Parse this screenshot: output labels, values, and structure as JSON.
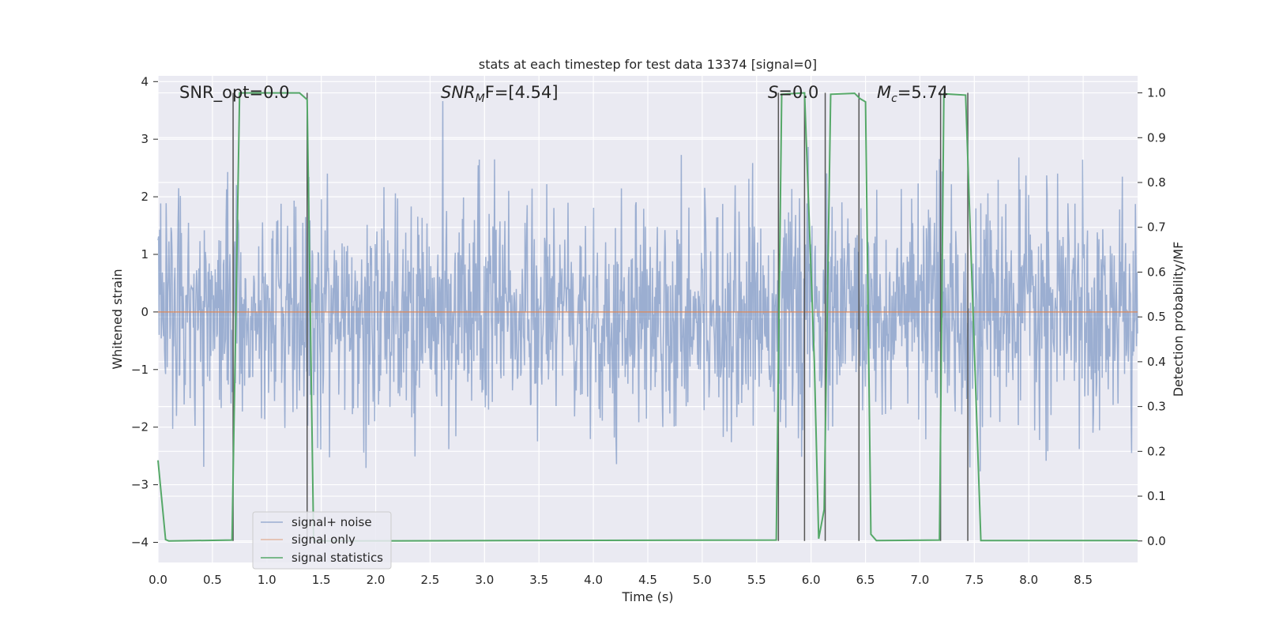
{
  "chart_data": {
    "type": "line",
    "title": "stats at each timestep for test data 13374 [signal=0]",
    "xlabel": "Time (s)",
    "ylabel": "Whitened strain",
    "y2label": "Detection probability/MF",
    "xlim": [
      0,
      9
    ],
    "ylim": [
      -4.35,
      4.1
    ],
    "y2lim": [
      -0.048,
      1.038
    ],
    "x_ticks": [
      0.0,
      0.5,
      1.0,
      1.5,
      2.0,
      2.5,
      3.0,
      3.5,
      4.0,
      4.5,
      5.0,
      5.5,
      6.0,
      6.5,
      7.0,
      7.5,
      8.0,
      8.5
    ],
    "x_tick_labels": [
      "0.0",
      "0.5",
      "1.0",
      "1.5",
      "2.0",
      "2.5",
      "3.0",
      "3.5",
      "4.0",
      "4.5",
      "5.0",
      "5.5",
      "6.0",
      "6.5",
      "7.0",
      "7.5",
      "8.0",
      "8.5"
    ],
    "y_ticks": [
      4,
      3,
      2,
      1,
      0,
      -1,
      -2,
      -3,
      -4
    ],
    "y_tick_labels": [
      "4",
      "3",
      "2",
      "1",
      "0",
      "−1",
      "−2",
      "−3",
      "−4"
    ],
    "y2_ticks": [
      1.0,
      0.9,
      0.8,
      0.7,
      0.6,
      0.5,
      0.4,
      0.3,
      0.2,
      0.1,
      0.0
    ],
    "y2_tick_labels": [
      "1.0",
      "0.9",
      "0.8",
      "0.7",
      "0.6",
      "0.5",
      "0.4",
      "0.3",
      "0.2",
      "0.1",
      "0.0"
    ],
    "grid": true,
    "annotations": {
      "snr_opt": "SNR_opt=0.0",
      "snr_mf_main": "SNR",
      "snr_mf_sub": "M",
      "snr_mf_rest": "F=[4.54]",
      "s_main": "S",
      "s_rest": "=0.0",
      "mc_main": "M",
      "mc_sub": "c",
      "mc_rest": "=5.74"
    },
    "legend": {
      "placement": "lower-left",
      "entries": [
        "signal+ noise",
        "signal only",
        "signal statistics"
      ]
    },
    "series": [
      {
        "name": "signal+ noise",
        "color": "#4c72b0",
        "noise_std": 0.95,
        "samples": 1800
      },
      {
        "name": "signal only",
        "color": "#dd8452",
        "x": [
          0,
          9
        ],
        "y": [
          0,
          0
        ]
      },
      {
        "name": "signal statistics",
        "color": "#55a868",
        "axis": "right",
        "x": [
          0,
          0.07,
          0.1,
          0.68,
          0.75,
          1.3,
          1.37,
          1.43,
          5.68,
          5.73,
          5.94,
          6.03,
          6.07,
          6.12,
          6.18,
          6.4,
          6.45,
          6.5,
          6.55,
          6.6,
          7.18,
          7.22,
          7.42,
          7.56,
          9
        ],
        "y": [
          0.18,
          0.003,
          0.0,
          0.002,
          1.0,
          1.0,
          0.985,
          0.0,
          0.002,
          0.997,
          1.0,
          0.4,
          0.005,
          0.07,
          0.997,
          0.999,
          0.987,
          0.98,
          0.015,
          0.001,
          0.002,
          0.998,
          0.995,
          0.001,
          0.001
        ]
      }
    ],
    "vertical_lines": [
      0.69,
      1.37,
      5.7,
      5.94,
      6.13,
      6.44,
      7.19,
      7.44
    ]
  }
}
